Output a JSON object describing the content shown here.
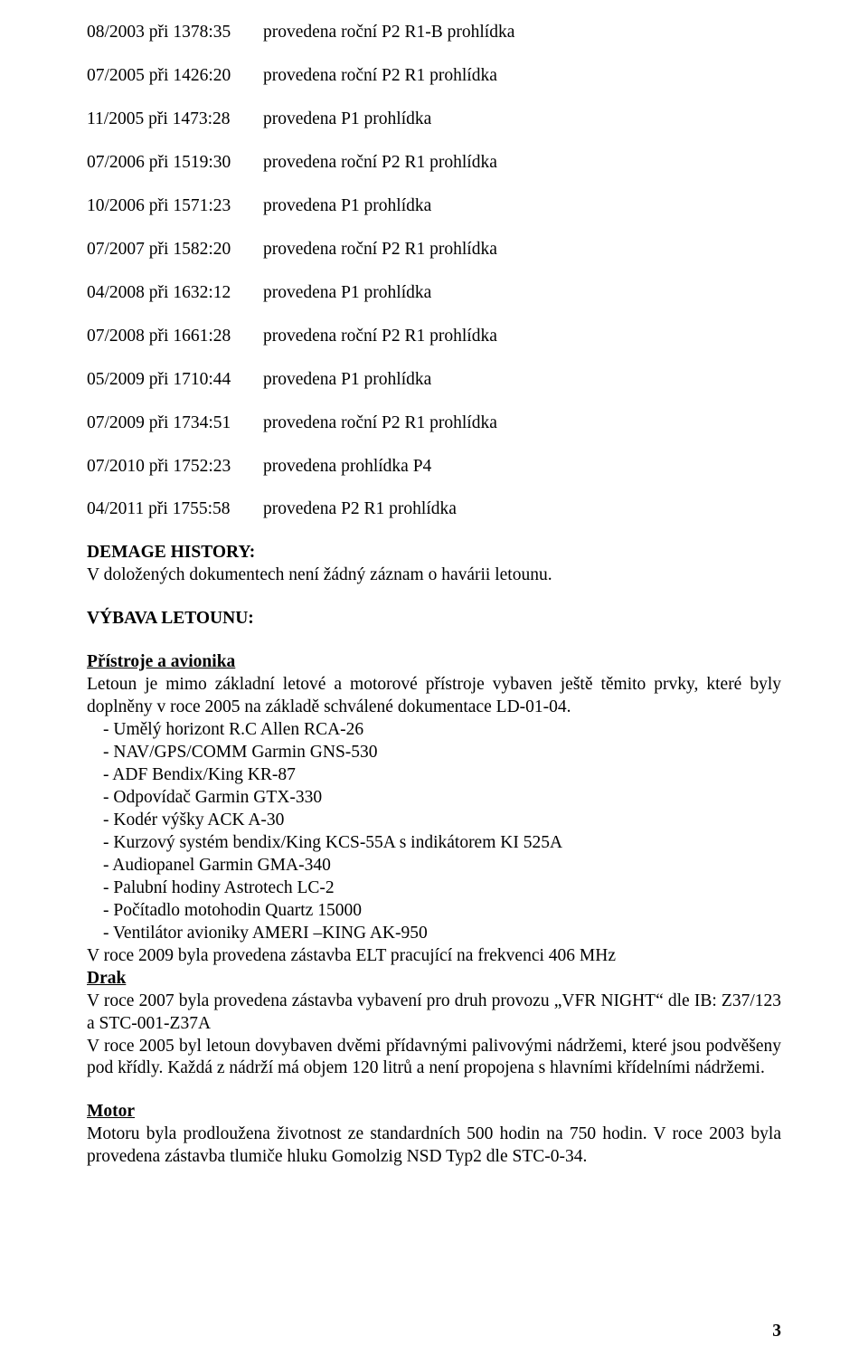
{
  "history": [
    {
      "date": "08/2003 při 1378:35",
      "desc": "provedena roční P2 R1-B prohlídka"
    },
    {
      "date": "07/2005 při 1426:20",
      "desc": "provedena roční P2 R1 prohlídka"
    },
    {
      "date": "11/2005 při 1473:28",
      "desc": "provedena P1 prohlídka"
    },
    {
      "date": "07/2006 při 1519:30",
      "desc": "provedena roční P2 R1 prohlídka"
    },
    {
      "date": "10/2006 při 1571:23",
      "desc": "provedena P1 prohlídka"
    },
    {
      "date": "07/2007 při 1582:20",
      "desc": "provedena roční P2 R1 prohlídka"
    },
    {
      "date": "04/2008 při 1632:12",
      "desc": "provedena P1 prohlídka"
    },
    {
      "date": "07/2008 při 1661:28",
      "desc": "provedena roční P2 R1 prohlídka"
    },
    {
      "date": "05/2009 při 1710:44",
      "desc": "provedena P1 prohlídka"
    },
    {
      "date": "07/2009 při 1734:51",
      "desc": "provedena roční P2 R1 prohlídka"
    },
    {
      "date": "07/2010 při 1752:23",
      "desc": "provedena prohlídka P4"
    },
    {
      "date": "04/2011 při 1755:58",
      "desc": "provedena P2 R1 prohlídka"
    }
  ],
  "demage": {
    "heading": "DEMAGE HISTORY:",
    "text": "V doložených dokumentech není žádný záznam o havárii letounu."
  },
  "vybava": {
    "heading": "VÝBAVA LETOUNU:"
  },
  "pristroje": {
    "heading": "Přístroje a avionika",
    "intro": "Letoun je mimo základní letové a motorové přístroje vybaven ještě těmito prvky, které byly doplněny v roce 2005 na základě schválené dokumentace LD-01-04.",
    "items": [
      "- Umělý horizont R.C Allen RCA-26",
      "- NAV/GPS/COMM Garmin GNS-530",
      "- ADF Bendix/King KR-87",
      "- Odpovídač Garmin GTX-330",
      "- Kodér výšky ACK A-30",
      "- Kurzový systém bendix/King KCS-55A s indikátorem KI 525A",
      "- Audiopanel Garmin GMA-340",
      "- Palubní hodiny Astrotech LC-2",
      "- Počítadlo motohodin Quartz 15000",
      "- Ventilátor avioniky AMERI –KING AK-950"
    ],
    "after": "V roce 2009 byla provedena zástavba ELT pracující na frekvenci 406 MHz"
  },
  "drak": {
    "heading": "Drak",
    "p1": "V roce 2007 byla provedena zástavba vybavení pro druh provozu „VFR NIGHT“ dle IB: Z37/123 a STC-001-Z37A",
    "p2": "V roce 2005 byl letoun dovybaven dvěmi přídavnými palivovými nádržemi, které jsou podvěšeny pod křídly. Každá z nádrží má objem 120 litrů a není propojena s hlavními křídelními nádržemi."
  },
  "motor": {
    "heading": "Motor",
    "p1": "Motoru byla prodloužena životnost ze standardních 500 hodin na 750 hodin. V roce 2003 byla provedena zástavba tlumiče hluku Gomolzig NSD Typ2 dle STC-0-34."
  },
  "page_number": "3"
}
